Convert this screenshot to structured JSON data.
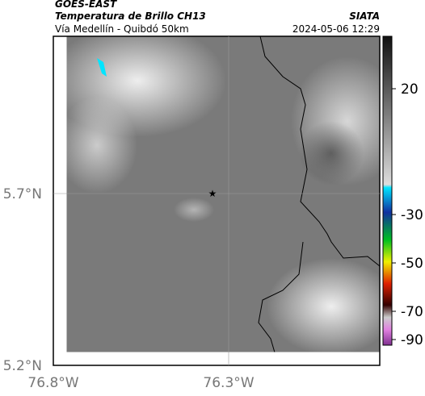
{
  "header": {
    "satellite": "GOES-EAST",
    "title": "Temperatura de Brillo CH13",
    "subtitle": "Vía Medellín - Quibdó 50km",
    "source": "SIATA",
    "datetime": "2024-05-06 12:29"
  },
  "axes": {
    "lat_labels": [
      "5.7°N",
      "5.2°N"
    ],
    "lon_labels": [
      "76.8°W",
      "76.3°W"
    ]
  },
  "colorbar": {
    "labels": [
      20,
      -30,
      -50,
      -70,
      -90
    ]
  }
}
